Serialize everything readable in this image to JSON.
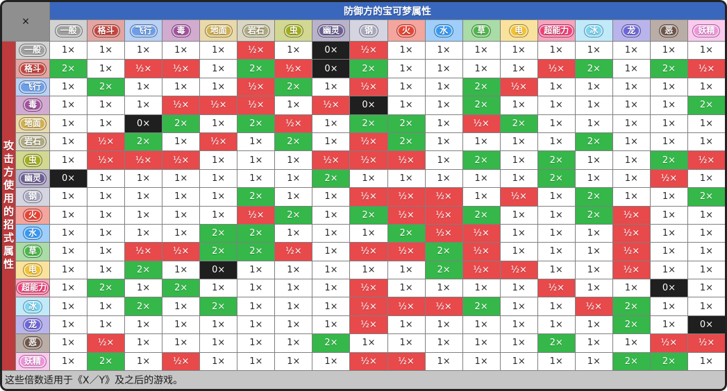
{
  "window": {
    "close_label": "×"
  },
  "header": {
    "title": "防御方的宝可梦属性"
  },
  "left_axis": {
    "label": "攻击方使用的招式属性"
  },
  "footer": {
    "note": "这些倍数适用于《X／Y》及之后的游戏。"
  },
  "ui_colors": {
    "titlebar": "#3967BD",
    "axis_strip": "#BE3B3D",
    "corner": "#8F8F8F",
    "footer": "#C6C6C6",
    "gridline": "#7F7F7F"
  },
  "chart_data": {
    "type": "heatmap",
    "title": "防御方的宝可梦属性",
    "col_axis_label": "防御方的宝可梦属性",
    "row_axis_label": "攻击方使用的招式属性",
    "note": "这些倍数适用于《X／Y》及之后的游戏。",
    "types": [
      {
        "label": "一般",
        "color": "#9FA19F"
      },
      {
        "label": "格斗",
        "color": "#C5443E"
      },
      {
        "label": "飞行",
        "color": "#6D9FE8"
      },
      {
        "label": "毒",
        "color": "#A2509E"
      },
      {
        "label": "地面",
        "color": "#D1B04F"
      },
      {
        "label": "岩石",
        "color": "#AFA981"
      },
      {
        "label": "虫",
        "color": "#A2AD1C"
      },
      {
        "label": "幽灵",
        "color": "#6C5E93"
      },
      {
        "label": "钢",
        "color": "#A8A8C0"
      },
      {
        "label": "火",
        "color": "#E94333"
      },
      {
        "label": "水",
        "color": "#3599F2"
      },
      {
        "label": "草",
        "color": "#4CB648"
      },
      {
        "label": "电",
        "color": "#F2C233"
      },
      {
        "label": "超能力",
        "color": "#EF4179"
      },
      {
        "label": "冰",
        "color": "#7BD4F2"
      },
      {
        "label": "龙",
        "color": "#6D65D8"
      },
      {
        "label": "恶",
        "color": "#6F5448"
      },
      {
        "label": "妖精",
        "color": "#F291DC"
      }
    ],
    "value_display": {
      "1": "1×",
      "2": "2×",
      "0.5": "½×",
      "0": "0×"
    },
    "cell_colors": {
      "1": "#FFFFFF",
      "2": "#35B74A",
      "0.5": "#E8494B",
      "0": "#1F1F1F"
    },
    "matrix": [
      [
        1,
        1,
        1,
        1,
        1,
        0.5,
        1,
        0,
        0.5,
        1,
        1,
        1,
        1,
        1,
        1,
        1,
        1,
        1
      ],
      [
        2,
        1,
        0.5,
        0.5,
        1,
        2,
        0.5,
        0,
        2,
        1,
        1,
        1,
        1,
        0.5,
        2,
        1,
        2,
        0.5
      ],
      [
        1,
        2,
        1,
        1,
        1,
        0.5,
        2,
        1,
        0.5,
        1,
        1,
        2,
        0.5,
        1,
        1,
        1,
        1,
        1
      ],
      [
        1,
        1,
        1,
        0.5,
        0.5,
        0.5,
        1,
        0.5,
        0,
        1,
        1,
        2,
        1,
        1,
        1,
        1,
        1,
        2
      ],
      [
        1,
        1,
        0,
        2,
        1,
        2,
        0.5,
        1,
        2,
        2,
        1,
        0.5,
        2,
        1,
        1,
        1,
        1,
        1
      ],
      [
        1,
        0.5,
        2,
        1,
        0.5,
        1,
        2,
        1,
        0.5,
        2,
        1,
        1,
        1,
        1,
        2,
        1,
        1,
        1
      ],
      [
        1,
        0.5,
        0.5,
        0.5,
        1,
        1,
        1,
        0.5,
        0.5,
        0.5,
        1,
        2,
        1,
        2,
        1,
        1,
        2,
        0.5
      ],
      [
        0,
        1,
        1,
        1,
        1,
        1,
        1,
        2,
        1,
        1,
        1,
        1,
        1,
        2,
        1,
        1,
        0.5,
        1
      ],
      [
        1,
        1,
        1,
        1,
        1,
        2,
        1,
        1,
        0.5,
        0.5,
        0.5,
        1,
        0.5,
        1,
        2,
        1,
        1,
        2
      ],
      [
        1,
        1,
        1,
        1,
        1,
        0.5,
        2,
        1,
        2,
        0.5,
        0.5,
        2,
        1,
        1,
        2,
        0.5,
        1,
        1
      ],
      [
        1,
        1,
        1,
        1,
        2,
        2,
        1,
        1,
        1,
        2,
        0.5,
        0.5,
        1,
        1,
        1,
        0.5,
        1,
        1
      ],
      [
        1,
        1,
        0.5,
        0.5,
        2,
        2,
        0.5,
        1,
        0.5,
        0.5,
        2,
        0.5,
        1,
        1,
        1,
        0.5,
        1,
        1
      ],
      [
        1,
        1,
        2,
        1,
        0,
        1,
        1,
        1,
        1,
        1,
        2,
        0.5,
        0.5,
        1,
        1,
        0.5,
        1,
        1
      ],
      [
        1,
        2,
        1,
        2,
        1,
        1,
        1,
        1,
        0.5,
        1,
        1,
        1,
        1,
        0.5,
        1,
        1,
        0,
        1
      ],
      [
        1,
        1,
        2,
        1,
        2,
        1,
        1,
        1,
        0.5,
        0.5,
        0.5,
        2,
        1,
        1,
        0.5,
        2,
        1,
        1
      ],
      [
        1,
        1,
        1,
        1,
        1,
        1,
        1,
        1,
        0.5,
        1,
        1,
        1,
        1,
        1,
        1,
        2,
        1,
        0
      ],
      [
        1,
        0.5,
        1,
        1,
        1,
        1,
        1,
        2,
        1,
        1,
        1,
        1,
        1,
        2,
        1,
        1,
        0.5,
        0.5
      ],
      [
        1,
        2,
        1,
        0.5,
        1,
        1,
        1,
        1,
        0.5,
        0.5,
        1,
        1,
        1,
        1,
        1,
        2,
        2,
        1
      ]
    ]
  }
}
